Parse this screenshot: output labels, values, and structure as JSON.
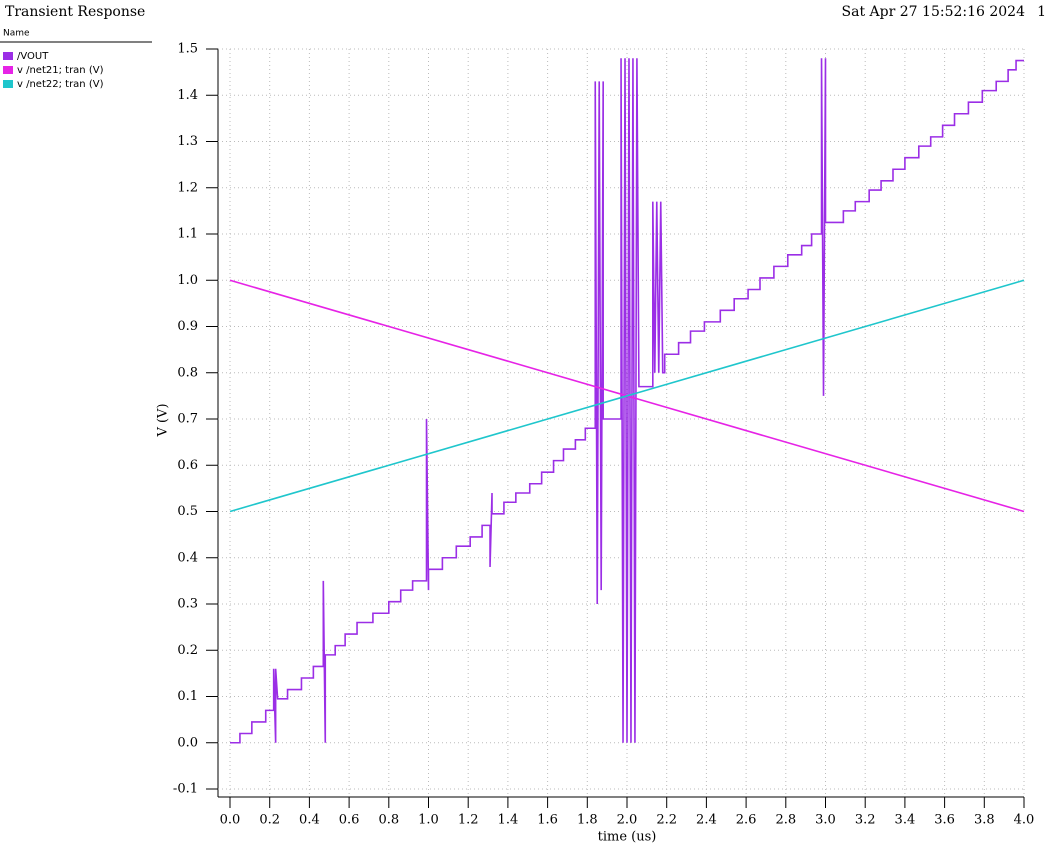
{
  "chart_data": {
    "type": "line",
    "title": "Transient Response",
    "timestamp": "Sat Apr 27 15:52:16 2024",
    "page_number": "1",
    "legend_header": "Name",
    "xlabel": "time (us)",
    "ylabel": "V (V)",
    "grid": true,
    "xlim": [
      0,
      4
    ],
    "ylim": [
      -0.1,
      1.5
    ],
    "xticks": [
      {
        "value": 0,
        "label": "0.0"
      },
      0.2,
      0.4,
      0.6,
      0.8,
      {
        "value": 1,
        "label": "1.0"
      },
      1.2,
      1.4,
      1.6,
      1.8,
      {
        "value": 2,
        "label": "2.0"
      },
      2.2,
      2.4,
      2.6,
      2.8,
      {
        "value": 3,
        "label": "3.0"
      },
      3.2,
      3.4,
      3.6,
      3.8,
      {
        "value": 4,
        "label": "4.0"
      }
    ],
    "yticks": [
      -0.1,
      {
        "value": 0,
        "label": "0.0"
      },
      0.1,
      0.2,
      0.3,
      0.4,
      0.5,
      0.6,
      0.7,
      0.8,
      0.9,
      {
        "value": 1,
        "label": "1.0"
      },
      1.1,
      1.2,
      1.3,
      1.4,
      1.5
    ],
    "series": [
      {
        "name": "/VOUT",
        "color": "#9b2ee6",
        "x": [
          0,
          0.05,
          0.05,
          0.11,
          0.11,
          0.18,
          0.18,
          0.22,
          0.22,
          0.23,
          0.23,
          0.24,
          0.24,
          0.29,
          0.29,
          0.36,
          0.36,
          0.42,
          0.42,
          0.47,
          0.47,
          0.48,
          0.48,
          0.53,
          0.53,
          0.58,
          0.58,
          0.64,
          0.64,
          0.72,
          0.72,
          0.8,
          0.8,
          0.86,
          0.86,
          0.92,
          0.92,
          0.99,
          0.99,
          1.0,
          1.0,
          1.07,
          1.07,
          1.14,
          1.14,
          1.21,
          1.21,
          1.27,
          1.27,
          1.31,
          1.31,
          1.32,
          1.32,
          1.38,
          1.38,
          1.44,
          1.44,
          1.51,
          1.51,
          1.57,
          1.57,
          1.63,
          1.63,
          1.68,
          1.68,
          1.74,
          1.74,
          1.79,
          1.79,
          1.84,
          1.84,
          1.85,
          1.86,
          1.87,
          1.88,
          1.88,
          1.97,
          1.97,
          1.98,
          1.99,
          2.0,
          2.01,
          2.02,
          2.03,
          2.04,
          2.05,
          2.06,
          2.13,
          2.13,
          2.14,
          2.15,
          2.16,
          2.17,
          2.18,
          2.19,
          2.19,
          2.26,
          2.26,
          2.32,
          2.32,
          2.39,
          2.39,
          2.47,
          2.47,
          2.54,
          2.54,
          2.61,
          2.61,
          2.67,
          2.67,
          2.74,
          2.74,
          2.81,
          2.81,
          2.88,
          2.88,
          2.93,
          2.93,
          2.98,
          2.98,
          2.99,
          3.0,
          3.0,
          3.09,
          3.09,
          3.15,
          3.15,
          3.22,
          3.22,
          3.28,
          3.28,
          3.34,
          3.34,
          3.4,
          3.4,
          3.47,
          3.47,
          3.53,
          3.53,
          3.59,
          3.59,
          3.65,
          3.65,
          3.72,
          3.72,
          3.79,
          3.79,
          3.86,
          3.86,
          3.92,
          3.92,
          3.96,
          3.96,
          4.0
        ],
        "values": [
          0,
          0,
          0.02,
          0.02,
          0.045,
          0.045,
          0.07,
          0.07,
          0.16,
          0.0,
          0.16,
          0.095,
          0.095,
          0.095,
          0.115,
          0.115,
          0.14,
          0.14,
          0.165,
          0.165,
          0.35,
          0.0,
          0.19,
          0.19,
          0.21,
          0.21,
          0.235,
          0.235,
          0.26,
          0.26,
          0.28,
          0.28,
          0.305,
          0.305,
          0.33,
          0.33,
          0.35,
          0.35,
          0.7,
          0.33,
          0.375,
          0.375,
          0.4,
          0.4,
          0.425,
          0.425,
          0.445,
          0.445,
          0.47,
          0.47,
          0.38,
          0.54,
          0.495,
          0.495,
          0.52,
          0.52,
          0.54,
          0.54,
          0.56,
          0.56,
          0.585,
          0.585,
          0.61,
          0.61,
          0.635,
          0.635,
          0.655,
          0.655,
          0.68,
          0.68,
          1.43,
          0.3,
          1.43,
          0.33,
          1.43,
          0.7,
          0.7,
          1.48,
          0.0,
          1.48,
          0.0,
          1.48,
          0.0,
          1.48,
          0.0,
          1.48,
          0.77,
          0.77,
          1.17,
          0.8,
          1.17,
          0.8,
          1.17,
          0.8,
          0.8,
          0.84,
          0.84,
          0.865,
          0.865,
          0.89,
          0.89,
          0.91,
          0.91,
          0.935,
          0.935,
          0.96,
          0.96,
          0.98,
          0.98,
          1.005,
          1.005,
          1.03,
          1.03,
          1.055,
          1.055,
          1.075,
          1.075,
          1.1,
          1.1,
          1.48,
          0.75,
          1.48,
          1.125,
          1.125,
          1.15,
          1.15,
          1.17,
          1.17,
          1.195,
          1.195,
          1.215,
          1.215,
          1.24,
          1.24,
          1.265,
          1.265,
          1.29,
          1.29,
          1.31,
          1.31,
          1.335,
          1.335,
          1.36,
          1.36,
          1.385,
          1.385,
          1.41,
          1.41,
          1.43,
          1.43,
          1.455,
          1.455,
          1.475,
          1.475
        ]
      },
      {
        "name": "v /net21; tran (V)",
        "color": "#e623e6",
        "x": [
          0,
          4
        ],
        "values": [
          1.0,
          0.5
        ]
      },
      {
        "name": "v /net22; tran (V)",
        "color": "#1fc6cc",
        "x": [
          0,
          4
        ],
        "values": [
          0.5,
          1.0
        ]
      }
    ]
  }
}
